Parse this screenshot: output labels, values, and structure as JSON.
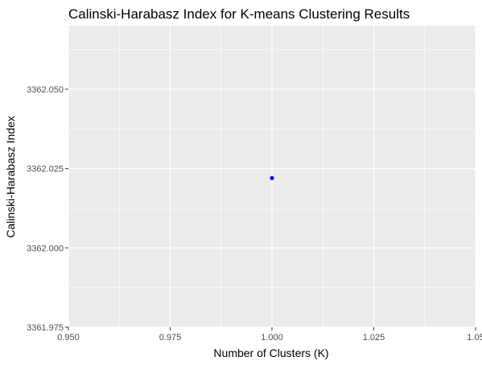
{
  "chart_data": {
    "type": "scatter",
    "title": "Calinski-Harabasz Index for K-means Clustering Results",
    "xlabel": "Number of Clusters (K)",
    "ylabel": "Calinski-Harabasz Index",
    "xlim": [
      0.95,
      1.05
    ],
    "ylim": [
      3361.975,
      3362.07
    ],
    "x_ticks": [
      0.95,
      0.975,
      1.0,
      1.025,
      1.05
    ],
    "x_tick_labels": [
      "0.950",
      "0.975",
      "1.000",
      "1.025",
      "1.05"
    ],
    "y_ticks": [
      3361.975,
      3362.0,
      3362.025,
      3362.05
    ],
    "y_tick_labels": [
      "3361.975",
      "3362.000",
      "3362.025",
      "3362.050"
    ],
    "grid": true,
    "colors": {
      "panel": "#ebebeb",
      "grid": "#ffffff",
      "point": "#0000ff"
    },
    "points": [
      {
        "x": 1.0,
        "y": 3362.022
      }
    ]
  }
}
